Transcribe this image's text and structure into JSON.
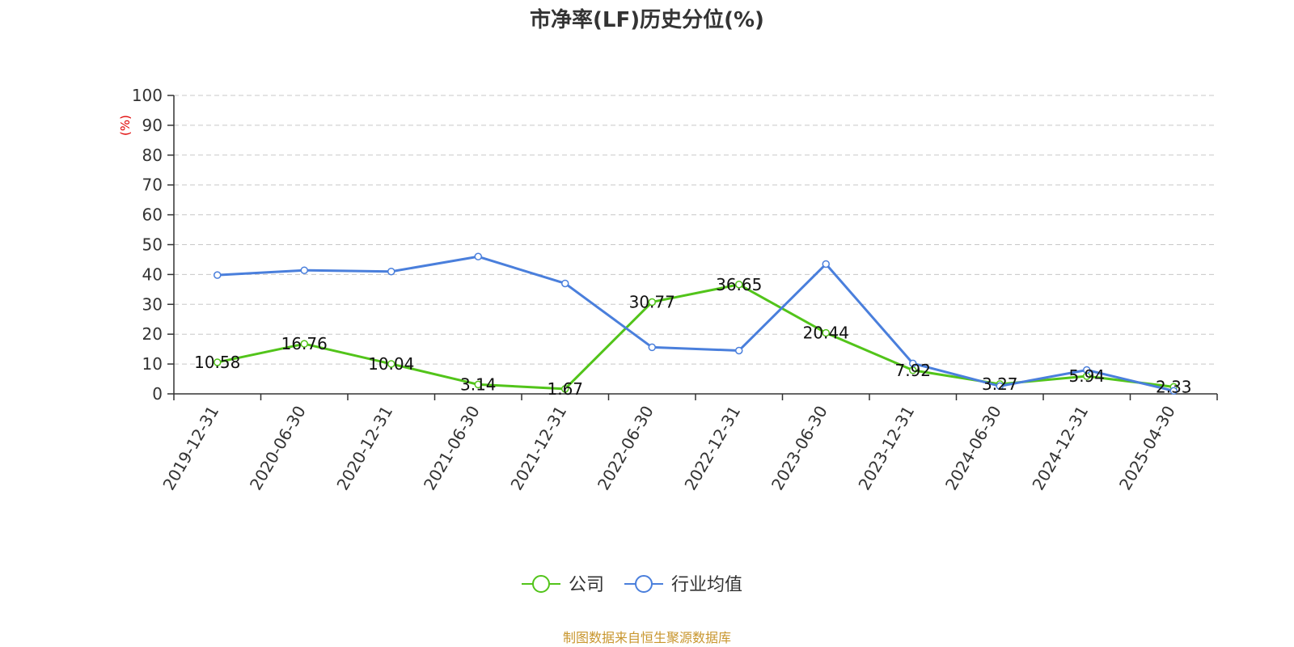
{
  "chart_data": {
    "type": "line",
    "title": "市净率(LF)历史分位(%)",
    "y_unit_label": "(%)",
    "ylim": [
      0,
      100
    ],
    "y_ticks": [
      0,
      10,
      20,
      30,
      40,
      50,
      60,
      70,
      80,
      90,
      100
    ],
    "categories": [
      "2019-12-31",
      "2020-06-30",
      "2020-12-31",
      "2021-06-30",
      "2021-12-31",
      "2022-06-30",
      "2022-12-31",
      "2023-06-30",
      "2023-12-31",
      "2024-06-30",
      "2024-12-31",
      "2025-04-30"
    ],
    "grid": true,
    "legend_position": "bottom",
    "series": [
      {
        "name": "公司",
        "color": "#52c41a",
        "values": [
          10.58,
          16.76,
          10.04,
          3.14,
          1.67,
          30.77,
          36.65,
          20.44,
          7.92,
          3.27,
          5.94,
          2.33
        ],
        "show_labels": true
      },
      {
        "name": "行业均值",
        "color": "#4a7fdc",
        "values": [
          39.8,
          41.4,
          41.0,
          46.0,
          37.0,
          15.6,
          14.5,
          43.5,
          10.2,
          2.6,
          8.0,
          1.0
        ],
        "show_labels": false
      }
    ],
    "source": "制图数据来自恒生聚源数据库",
    "source_color": "#c8962e",
    "unit_color": "#e00000"
  }
}
